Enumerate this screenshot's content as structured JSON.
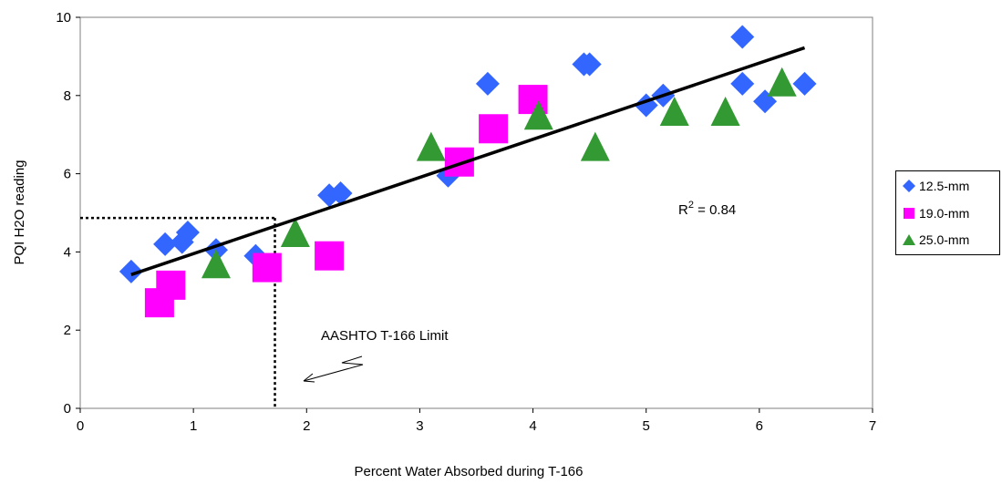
{
  "chart_data": {
    "type": "scatter",
    "xlabel": "Percent Water Absorbed during T-166",
    "ylabel": "PQI H2O reading",
    "xlim": [
      0,
      7
    ],
    "ylim": [
      0,
      10
    ],
    "x_ticks": [
      "0",
      "1",
      "2",
      "3",
      "4",
      "5",
      "6",
      "7"
    ],
    "y_ticks": [
      "0",
      "2",
      "4",
      "6",
      "8",
      "10"
    ],
    "grid": false,
    "legend_position": "right",
    "series": [
      {
        "name": "12.5-mm",
        "marker": "diamond",
        "color": "#3366FF",
        "points": [
          [
            0.45,
            3.5
          ],
          [
            0.75,
            4.2
          ],
          [
            0.9,
            4.25
          ],
          [
            0.95,
            4.5
          ],
          [
            1.2,
            4.05
          ],
          [
            1.55,
            3.9
          ],
          [
            2.2,
            5.45
          ],
          [
            2.3,
            5.5
          ],
          [
            3.25,
            5.95
          ],
          [
            3.6,
            8.3
          ],
          [
            4.45,
            8.8
          ],
          [
            4.5,
            8.8
          ],
          [
            5.0,
            7.75
          ],
          [
            5.15,
            8.0
          ],
          [
            5.85,
            9.5
          ],
          [
            5.85,
            8.3
          ],
          [
            6.05,
            7.85
          ],
          [
            6.4,
            8.3
          ]
        ]
      },
      {
        "name": "19.0-mm",
        "marker": "square",
        "color": "#FF00FF",
        "points": [
          [
            0.7,
            2.7
          ],
          [
            0.8,
            3.15
          ],
          [
            1.65,
            3.6
          ],
          [
            2.2,
            3.9
          ],
          [
            3.35,
            6.3
          ],
          [
            3.65,
            7.15
          ],
          [
            4.0,
            7.9
          ]
        ]
      },
      {
        "name": "25.0-mm",
        "marker": "triangle",
        "color": "#339933",
        "points": [
          [
            1.2,
            3.7
          ],
          [
            1.9,
            4.5
          ],
          [
            3.1,
            6.7
          ],
          [
            4.05,
            7.5
          ],
          [
            4.55,
            6.7
          ],
          [
            5.25,
            7.6
          ],
          [
            5.7,
            7.6
          ],
          [
            6.2,
            8.35
          ]
        ]
      }
    ],
    "trendline": {
      "x": [
        0.45,
        6.4
      ],
      "y": [
        3.42,
        9.22
      ],
      "color": "#000000"
    },
    "annotations": {
      "r2_label": "R",
      "r2_sup": "2",
      "r2_value": " = 0.84",
      "limit_label": "AASHTO T-166 Limit"
    },
    "reference_lines": {
      "x_limit": 1.72,
      "y_reading": 4.87
    }
  }
}
